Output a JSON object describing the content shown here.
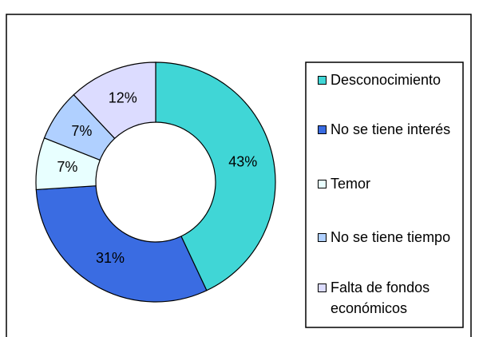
{
  "chart_data": {
    "type": "donut",
    "categories": [
      "Desconocimiento",
      "No se tiene interés",
      "Temor",
      "No se tiene tiempo",
      "Falta de fondos económicos"
    ],
    "values": [
      43,
      31,
      7,
      7,
      12
    ],
    "value_labels": [
      "43%",
      "31%",
      "7%",
      "7%",
      "12%"
    ],
    "colors": [
      "#40d6d6",
      "#3a6ce2",
      "#e8ffff",
      "#b0d0ff",
      "#dcdcff"
    ],
    "legend": "right"
  }
}
